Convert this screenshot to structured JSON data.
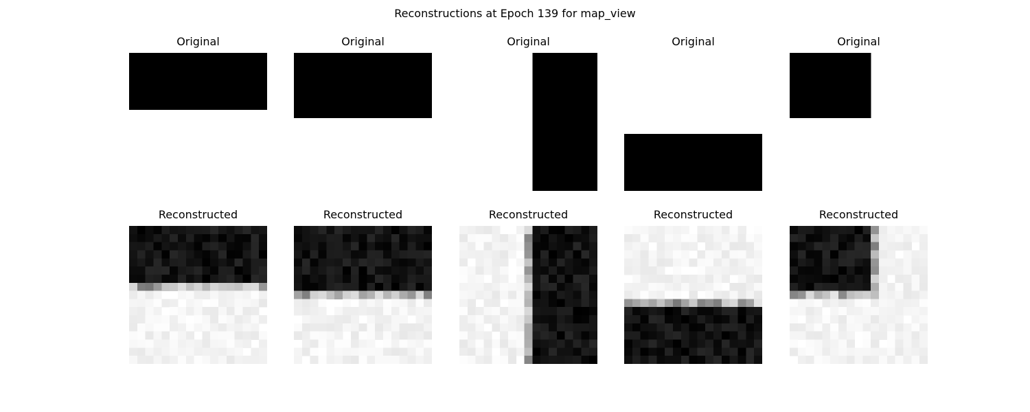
{
  "figure": {
    "title": "Reconstructions at Epoch 139 for map_view"
  },
  "grid_size": 17,
  "originals": [
    {
      "label": "Original",
      "filled": {
        "rows": [
          0,
          6
        ],
        "cols": [
          0,
          16
        ]
      }
    },
    {
      "label": "Original",
      "filled": {
        "rows": [
          0,
          7
        ],
        "cols": [
          0,
          16
        ]
      }
    },
    {
      "label": "Original",
      "filled": {
        "rows": [
          0,
          16
        ],
        "cols": [
          9,
          16
        ]
      }
    },
    {
      "label": "Original",
      "filled": {
        "rows": [
          10,
          16
        ],
        "cols": [
          0,
          16
        ]
      }
    },
    {
      "label": "Original",
      "filled": {
        "rows": [
          0,
          7
        ],
        "cols": [
          0,
          9
        ]
      }
    }
  ],
  "reconstructions": [
    {
      "label": "Reconstructed"
    },
    {
      "label": "Reconstructed"
    },
    {
      "label": "Reconstructed"
    },
    {
      "label": "Reconstructed"
    },
    {
      "label": "Reconstructed"
    }
  ]
}
